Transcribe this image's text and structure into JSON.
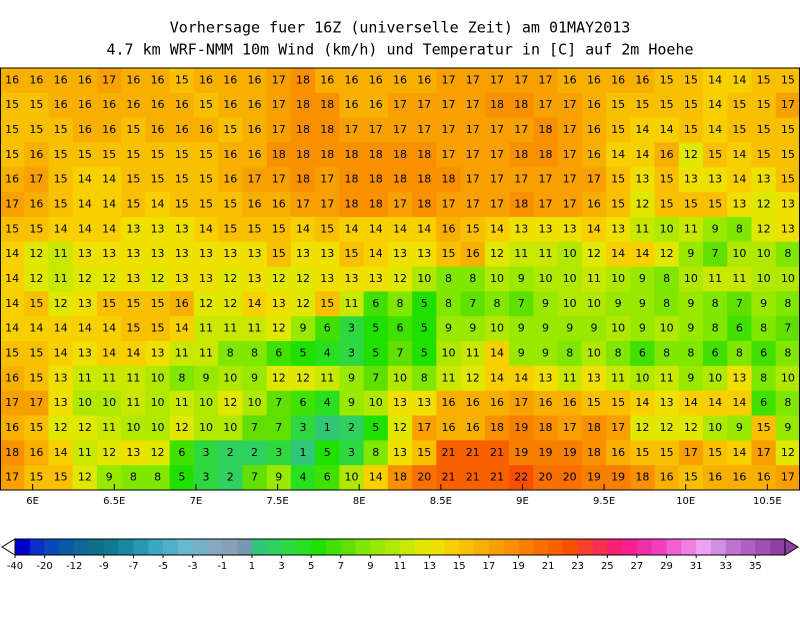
{
  "header": {
    "title": "Vorhersage fuer 16Z (universelle Zeit) am 01MAY2013",
    "subtitle": "4.7 km WRF-NMM 10m Wind (km/h) und Temperatur in [C] auf 2m Hoehe"
  },
  "map": {
    "xlim": [
      5.8,
      10.7
    ],
    "xticks": [
      {
        "value": 6,
        "label": "6E"
      },
      {
        "value": 6.5,
        "label": "6.5E"
      },
      {
        "value": 7,
        "label": "7E"
      },
      {
        "value": 7.5,
        "label": "7.5E"
      },
      {
        "value": 8,
        "label": "8E"
      },
      {
        "value": 8.5,
        "label": "8.5E"
      },
      {
        "value": 9,
        "label": "9E"
      },
      {
        "value": 9.5,
        "label": "9.5E"
      },
      {
        "value": 10,
        "label": "10E"
      },
      {
        "value": 10.5,
        "label": "10.5E"
      }
    ],
    "temperature_grid": [
      [
        16,
        16,
        16,
        16,
        17,
        16,
        16,
        15,
        16,
        16,
        16,
        17,
        18,
        16,
        16,
        16,
        16,
        16,
        17,
        17,
        17,
        17,
        17,
        16,
        16,
        16,
        16,
        15,
        15,
        14,
        14,
        15,
        15
      ],
      [
        15,
        15,
        16,
        16,
        16,
        16,
        16,
        16,
        15,
        16,
        16,
        17,
        18,
        18,
        16,
        16,
        17,
        17,
        17,
        17,
        18,
        18,
        17,
        17,
        16,
        15,
        15,
        15,
        15,
        14,
        15,
        15,
        17
      ],
      [
        15,
        15,
        15,
        16,
        16,
        15,
        16,
        16,
        16,
        15,
        16,
        17,
        18,
        18,
        17,
        17,
        17,
        17,
        17,
        17,
        17,
        17,
        18,
        17,
        16,
        15,
        14,
        14,
        15,
        14,
        15,
        15,
        15
      ],
      [
        15,
        16,
        15,
        15,
        15,
        15,
        15,
        15,
        15,
        16,
        16,
        18,
        18,
        18,
        18,
        18,
        18,
        18,
        17,
        17,
        17,
        18,
        18,
        17,
        16,
        14,
        14,
        16,
        12,
        15,
        14,
        15,
        15
      ],
      [
        16,
        17,
        15,
        14,
        14,
        15,
        15,
        15,
        15,
        16,
        17,
        17,
        18,
        17,
        18,
        18,
        18,
        18,
        18,
        17,
        17,
        17,
        17,
        17,
        17,
        15,
        13,
        15,
        13,
        13,
        14,
        13,
        15
      ],
      [
        17,
        16,
        15,
        14,
        14,
        15,
        14,
        15,
        15,
        15,
        16,
        16,
        17,
        17,
        18,
        18,
        17,
        18,
        17,
        17,
        17,
        18,
        17,
        17,
        16,
        15,
        12,
        15,
        15,
        15,
        13,
        12,
        13
      ],
      [
        15,
        15,
        14,
        14,
        14,
        13,
        13,
        13,
        14,
        15,
        15,
        15,
        14,
        15,
        14,
        14,
        14,
        14,
        16,
        15,
        14,
        13,
        13,
        13,
        14,
        13,
        11,
        10,
        11,
        9,
        8,
        12,
        13
      ],
      [
        14,
        12,
        11,
        13,
        13,
        13,
        13,
        13,
        13,
        13,
        13,
        15,
        13,
        13,
        15,
        14,
        13,
        13,
        15,
        16,
        12,
        11,
        11,
        10,
        12,
        14,
        14,
        12,
        9,
        7,
        10,
        10,
        8
      ],
      [
        14,
        12,
        11,
        12,
        12,
        13,
        12,
        13,
        13,
        12,
        13,
        12,
        12,
        13,
        13,
        13,
        12,
        10,
        8,
        8,
        10,
        9,
        10,
        10,
        11,
        10,
        9,
        8,
        10,
        11,
        11,
        10,
        10
      ],
      [
        14,
        15,
        12,
        13,
        15,
        15,
        15,
        16,
        12,
        12,
        14,
        13,
        12,
        15,
        11,
        6,
        8,
        5,
        8,
        7,
        8,
        7,
        9,
        10,
        10,
        9,
        9,
        8,
        9,
        8,
        7,
        9,
        8
      ],
      [
        14,
        14,
        14,
        14,
        14,
        15,
        15,
        14,
        11,
        11,
        11,
        12,
        9,
        6,
        3,
        5,
        6,
        5,
        9,
        9,
        10,
        9,
        9,
        9,
        9,
        10,
        9,
        10,
        9,
        8,
        6,
        8,
        7
      ],
      [
        15,
        15,
        14,
        13,
        14,
        14,
        13,
        11,
        11,
        8,
        8,
        6,
        5,
        4,
        3,
        5,
        7,
        5,
        10,
        11,
        14,
        9,
        9,
        8,
        10,
        8,
        6,
        8,
        8,
        6,
        8,
        6,
        8
      ],
      [
        16,
        15,
        13,
        11,
        11,
        11,
        10,
        8,
        9,
        10,
        9,
        12,
        12,
        11,
        9,
        7,
        10,
        8,
        11,
        12,
        14,
        14,
        13,
        11,
        13,
        11,
        10,
        11,
        9,
        10,
        13,
        8,
        10
      ],
      [
        17,
        17,
        13,
        10,
        10,
        11,
        10,
        11,
        10,
        12,
        10,
        7,
        6,
        4,
        9,
        10,
        13,
        13,
        16,
        16,
        16,
        17,
        16,
        16,
        15,
        15,
        14,
        13,
        14,
        14,
        14,
        6,
        8
      ],
      [
        16,
        15,
        12,
        12,
        11,
        10,
        10,
        12,
        10,
        10,
        7,
        7,
        3,
        1,
        2,
        5,
        12,
        17,
        16,
        16,
        18,
        19,
        18,
        17,
        18,
        17,
        12,
        12,
        12,
        10,
        9,
        15,
        9
      ],
      [
        18,
        16,
        14,
        11,
        12,
        13,
        12,
        6,
        3,
        2,
        2,
        3,
        1,
        5,
        3,
        8,
        13,
        15,
        21,
        21,
        21,
        19,
        19,
        19,
        18,
        16,
        15,
        15,
        17,
        15,
        14,
        17,
        12
      ],
      [
        17,
        15,
        15,
        12,
        9,
        8,
        8,
        5,
        3,
        2,
        7,
        9,
        4,
        6,
        10,
        14,
        18,
        20,
        21,
        21,
        21,
        22,
        20,
        20,
        19,
        19,
        18,
        16,
        15,
        16,
        16,
        16,
        17
      ]
    ]
  },
  "colorbar": {
    "labels": [
      -40,
      -20,
      -12,
      -9,
      -7,
      -5,
      -3,
      -1,
      1,
      3,
      5,
      7,
      9,
      11,
      13,
      15,
      17,
      19,
      21,
      23,
      25,
      27,
      29,
      31,
      33,
      35
    ],
    "colors": [
      "#0000cd",
      "#0a2fc8",
      "#0a4ab8",
      "#0a5aa8",
      "#106898",
      "#107088",
      "#107a90",
      "#1888a0",
      "#2898b0",
      "#3aa8c0",
      "#50b0c8",
      "#68b8d0",
      "#78b0c8",
      "#88a8c0",
      "#88a0b8",
      "#7898b0",
      "#30c878",
      "#30d060",
      "#30d840",
      "#28e020",
      "#20e000",
      "#40e000",
      "#60e000",
      "#80e800",
      "#98e800",
      "#b0e800",
      "#c8e800",
      "#e0e800",
      "#f0e000",
      "#f8d000",
      "#f8c000",
      "#f8b000",
      "#f8a000",
      "#f89000",
      "#f88000",
      "#f87000",
      "#f86000",
      "#f85000",
      "#f84030",
      "#f83050",
      "#f82070",
      "#f82090",
      "#f030a8",
      "#f040c0",
      "#f060d0",
      "#f080e0",
      "#f0a0f0",
      "#d090e0",
      "#c070d0",
      "#b060c0",
      "#a050b0",
      "#9040a0"
    ]
  }
}
